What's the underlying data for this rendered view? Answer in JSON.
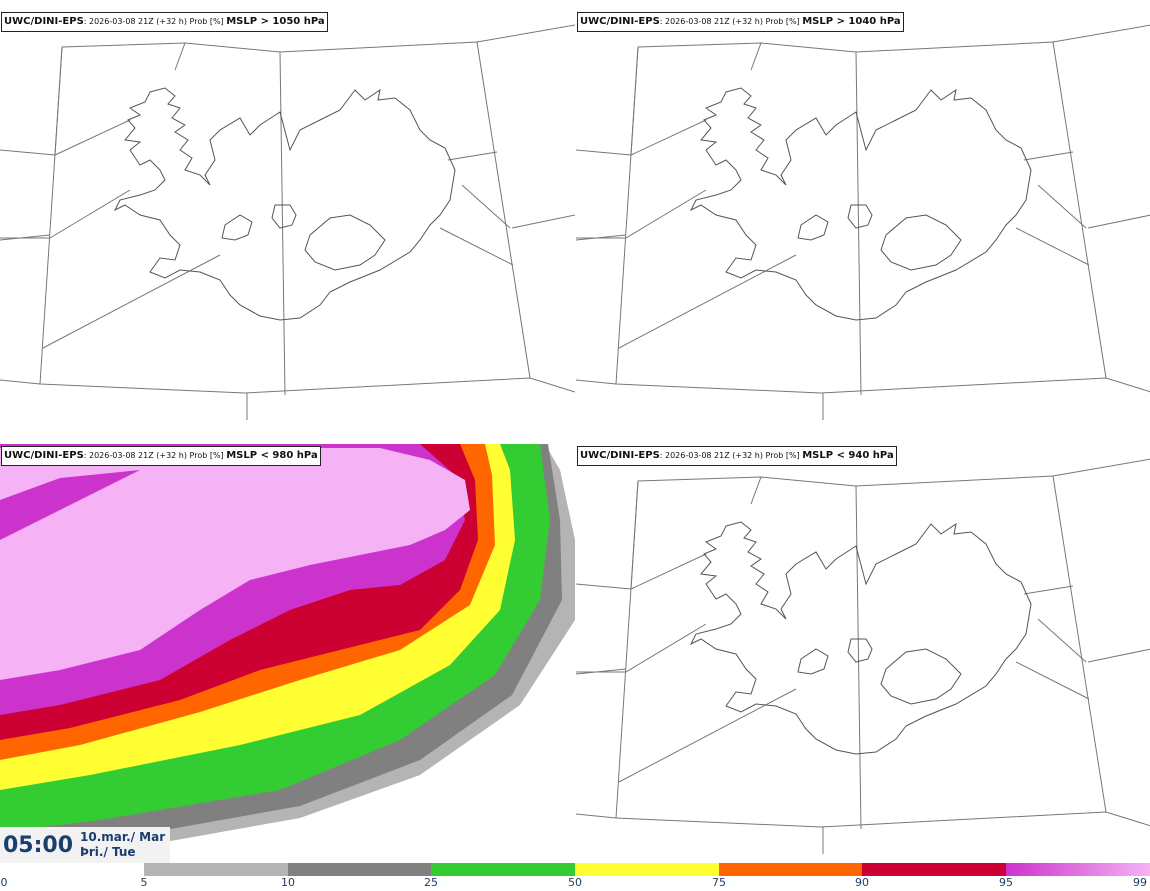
{
  "panels": [
    {
      "model": "UWC/DINI-EPS",
      "run": ": 2026-03-08 21Z (+32 h) Prob [%] ",
      "field": "MSLP > 1050 hPa"
    },
    {
      "model": "UWC/DINI-EPS",
      "run": ": 2026-03-08 21Z (+32 h) Prob [%] ",
      "field": "MSLP > 1040 hPa"
    },
    {
      "model": "UWC/DINI-EPS",
      "run": ": 2026-03-08 21Z (+32 h) Prob [%] ",
      "field": "MSLP < 980 hPa"
    },
    {
      "model": "UWC/DINI-EPS",
      "run": ": 2026-03-08 21Z (+32 h) Prob [%] ",
      "field": "MSLP < 940 hPa"
    }
  ],
  "valid": {
    "time": "05:00",
    "date": "10.mar./ Mar",
    "weekday": "Þri./ Tue"
  },
  "colorbar": {
    "ticks": [
      "0",
      "5",
      "10",
      "25",
      "50",
      "75",
      "90",
      "95",
      "99"
    ],
    "colors": [
      "#ffffff",
      "#b4b4b4",
      "#808080",
      "#33cc33",
      "#ffff33",
      "#ff6600",
      "#cc0033",
      "#cc33cc",
      "#f5b3f5"
    ]
  }
}
